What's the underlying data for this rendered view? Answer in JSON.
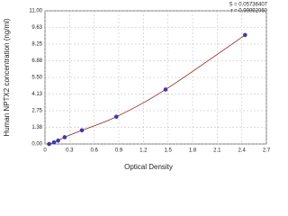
{
  "chart_data": {
    "type": "scatter",
    "x_label": "Optical Density",
    "y_label": "Human NPTX2 concentration (ng/ml)",
    "annotations": [
      "S = 0.05736407",
      "r = 0.99992060"
    ],
    "x": [
      0.05,
      0.11,
      0.16,
      0.24,
      0.45,
      0.87,
      1.47,
      2.44
    ],
    "values": [
      0,
      0.14,
      0.28,
      0.56,
      1.13,
      2.25,
      4.5,
      9
    ],
    "point_color": "#3b3ba8",
    "curve_color": "#9b1c1c",
    "xlim": [
      0,
      2.7
    ],
    "ylim": [
      0,
      11
    ],
    "xticks": [
      0,
      0.3,
      0.6,
      0.9,
      1.2,
      1.5,
      1.8,
      2.1,
      2.4,
      2.7
    ],
    "yticks": [
      {
        "value": 0,
        "label": "0.00"
      },
      1.38,
      2.75,
      4.13,
      {
        "value": 5.5,
        "label": "5.50"
      },
      6.88,
      8.25,
      9.63,
      {
        "value": 11,
        "label": "11.00"
      }
    ],
    "grid": true
  }
}
